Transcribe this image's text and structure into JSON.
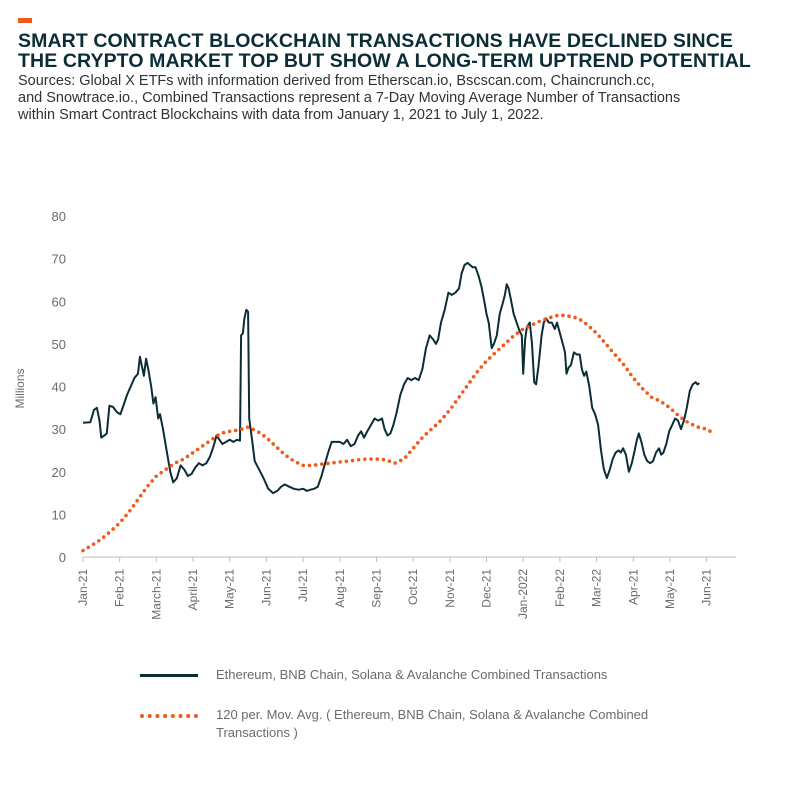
{
  "header": {
    "accent_color": "#f05a1a",
    "title_lines": [
      "SMART CONTRACT BLOCKCHAIN TRANSACTIONS HAVE DECLINED SINCE",
      "THE CRYPTO MARKET TOP BUT SHOW A LONG-TERM UPTREND POTENTIAL"
    ],
    "source_lines": [
      "Sources: Global X ETFs with information derived from Etherscan.io, Bscscan.com, Chaincrunch.cc,",
      "and Snowtrace.io., Combined Transactions represent a 7-Day Moving Average Number of Transactions",
      "within Smart Contract Blockchains with data from January 1, 2021 to July 1, 2022."
    ]
  },
  "chart_data": {
    "type": "line",
    "ylabel": "Millions",
    "ylim": [
      0,
      80
    ],
    "yticks": [
      0,
      10,
      20,
      30,
      40,
      50,
      60,
      70,
      80
    ],
    "xlim": [
      0,
      17.8
    ],
    "xtick_labels": [
      "Jan-21",
      "Feb-21",
      "March-21",
      "April-21",
      "May-21",
      "Jun-21",
      "Jul-21",
      "Aug-21",
      "Sep-21",
      "Oct-21",
      "Nov-21",
      "Dec-21",
      "Jan-2022",
      "Feb-22",
      "Mar-22",
      "Apr-21",
      "May-21",
      "Jun-21"
    ],
    "grid": false,
    "legend_position": "bottom",
    "series": [
      {
        "name": "Ethereum, BNB Chain, Solana & Avalanche Combined Transactions",
        "color": "#0b2d36",
        "style": "solid",
        "points": [
          [
            0.0,
            31.5
          ],
          [
            0.2,
            31.6
          ],
          [
            0.3,
            34.5
          ],
          [
            0.38,
            35.0
          ],
          [
            0.45,
            32.0
          ],
          [
            0.5,
            28.0
          ],
          [
            0.58,
            28.5
          ],
          [
            0.65,
            29.0
          ],
          [
            0.72,
            35.5
          ],
          [
            0.82,
            35.2
          ],
          [
            0.92,
            34.0
          ],
          [
            1.02,
            33.5
          ],
          [
            1.1,
            35.5
          ],
          [
            1.2,
            38.0
          ],
          [
            1.3,
            40.0
          ],
          [
            1.4,
            42.0
          ],
          [
            1.5,
            43.0
          ],
          [
            1.55,
            47.0
          ],
          [
            1.6,
            45.0
          ],
          [
            1.66,
            42.5
          ],
          [
            1.72,
            46.5
          ],
          [
            1.78,
            44.0
          ],
          [
            1.86,
            40.0
          ],
          [
            1.92,
            36.0
          ],
          [
            1.98,
            37.5
          ],
          [
            2.05,
            32.5
          ],
          [
            2.1,
            33.5
          ],
          [
            2.18,
            30.0
          ],
          [
            2.28,
            25.0
          ],
          [
            2.38,
            20.0
          ],
          [
            2.46,
            17.5
          ],
          [
            2.56,
            18.5
          ],
          [
            2.66,
            21.5
          ],
          [
            2.76,
            20.5
          ],
          [
            2.86,
            19.0
          ],
          [
            2.96,
            19.5
          ],
          [
            3.06,
            21.0
          ],
          [
            3.16,
            22.0
          ],
          [
            3.26,
            21.5
          ],
          [
            3.36,
            22.0
          ],
          [
            3.46,
            23.5
          ],
          [
            3.56,
            26.0
          ],
          [
            3.64,
            28.5
          ],
          [
            3.72,
            27.5
          ],
          [
            3.8,
            26.5
          ],
          [
            3.9,
            27.0
          ],
          [
            4.0,
            27.5
          ],
          [
            4.1,
            27.0
          ],
          [
            4.2,
            27.5
          ],
          [
            4.28,
            27.3
          ],
          [
            4.31,
            52.0
          ],
          [
            4.36,
            52.5
          ],
          [
            4.4,
            56.0
          ],
          [
            4.45,
            58.0
          ],
          [
            4.5,
            57.5
          ],
          [
            4.53,
            32.5
          ],
          [
            4.6,
            28.0
          ],
          [
            4.68,
            22.5
          ],
          [
            4.8,
            20.5
          ],
          [
            4.92,
            18.5
          ],
          [
            5.05,
            16.0
          ],
          [
            5.18,
            15.0
          ],
          [
            5.3,
            15.5
          ],
          [
            5.4,
            16.5
          ],
          [
            5.5,
            17.0
          ],
          [
            5.62,
            16.5
          ],
          [
            5.75,
            16.0
          ],
          [
            5.88,
            15.8
          ],
          [
            6.0,
            16.0
          ],
          [
            6.1,
            15.5
          ],
          [
            6.2,
            15.8
          ],
          [
            6.3,
            16.0
          ],
          [
            6.4,
            16.5
          ],
          [
            6.5,
            19.0
          ],
          [
            6.6,
            22.0
          ],
          [
            6.7,
            25.0
          ],
          [
            6.78,
            27.0
          ],
          [
            6.9,
            27.0
          ],
          [
            7.0,
            27.0
          ],
          [
            7.1,
            26.5
          ],
          [
            7.2,
            27.5
          ],
          [
            7.3,
            26.0
          ],
          [
            7.4,
            26.5
          ],
          [
            7.5,
            28.5
          ],
          [
            7.58,
            29.5
          ],
          [
            7.66,
            28.0
          ],
          [
            7.75,
            29.5
          ],
          [
            7.85,
            31.0
          ],
          [
            7.95,
            32.5
          ],
          [
            8.05,
            32.0
          ],
          [
            8.15,
            32.5
          ],
          [
            8.22,
            30.0
          ],
          [
            8.3,
            28.5
          ],
          [
            8.38,
            29.0
          ],
          [
            8.46,
            31.0
          ],
          [
            8.55,
            34.0
          ],
          [
            8.65,
            38.0
          ],
          [
            8.75,
            40.5
          ],
          [
            8.85,
            42.0
          ],
          [
            8.95,
            41.5
          ],
          [
            9.05,
            42.0
          ],
          [
            9.15,
            41.5
          ],
          [
            9.25,
            44.0
          ],
          [
            9.35,
            49.0
          ],
          [
            9.45,
            52.0
          ],
          [
            9.55,
            51.0
          ],
          [
            9.62,
            50.0
          ],
          [
            9.68,
            51.0
          ],
          [
            9.76,
            55.0
          ],
          [
            9.86,
            58.0
          ],
          [
            9.96,
            62.0
          ],
          [
            10.05,
            61.5
          ],
          [
            10.15,
            62.0
          ],
          [
            10.25,
            63.0
          ],
          [
            10.32,
            66.5
          ],
          [
            10.4,
            68.5
          ],
          [
            10.48,
            69.0
          ],
          [
            10.55,
            68.5
          ],
          [
            10.62,
            68.0
          ],
          [
            10.7,
            68.0
          ],
          [
            10.78,
            66.0
          ],
          [
            10.86,
            63.5
          ],
          [
            10.94,
            60.0
          ],
          [
            11.0,
            57.0
          ],
          [
            11.06,
            55.0
          ],
          [
            11.1,
            52.0
          ],
          [
            11.14,
            49.0
          ],
          [
            11.2,
            50.0
          ],
          [
            11.28,
            52.0
          ],
          [
            11.36,
            57.0
          ],
          [
            11.44,
            59.5
          ],
          [
            11.5,
            61.5
          ],
          [
            11.55,
            64.0
          ],
          [
            11.6,
            63.0
          ],
          [
            11.66,
            60.5
          ],
          [
            11.74,
            57.0
          ],
          [
            11.82,
            55.0
          ],
          [
            11.9,
            53.0
          ],
          [
            11.96,
            52.0
          ],
          [
            12.0,
            43.0
          ],
          [
            12.05,
            51.0
          ],
          [
            12.1,
            54.0
          ],
          [
            12.18,
            55.0
          ],
          [
            12.24,
            50.0
          ],
          [
            12.3,
            41.0
          ],
          [
            12.35,
            40.5
          ],
          [
            12.42,
            45.0
          ],
          [
            12.5,
            52.0
          ],
          [
            12.56,
            55.0
          ],
          [
            12.62,
            56.0
          ],
          [
            12.7,
            55.0
          ],
          [
            12.78,
            55.0
          ],
          [
            12.86,
            53.5
          ],
          [
            12.92,
            55.0
          ],
          [
            13.0,
            52.5
          ],
          [
            13.08,
            50.0
          ],
          [
            13.14,
            48.0
          ],
          [
            13.18,
            43.0
          ],
          [
            13.24,
            44.5
          ],
          [
            13.3,
            45.0
          ],
          [
            13.38,
            48.0
          ],
          [
            13.46,
            47.5
          ],
          [
            13.54,
            47.5
          ],
          [
            13.6,
            44.0
          ],
          [
            13.66,
            42.5
          ],
          [
            13.72,
            43.5
          ],
          [
            13.8,
            40.0
          ],
          [
            13.88,
            35.0
          ],
          [
            13.96,
            33.5
          ],
          [
            14.04,
            31.0
          ],
          [
            14.12,
            25.0
          ],
          [
            14.2,
            20.5
          ],
          [
            14.28,
            18.5
          ],
          [
            14.36,
            20.5
          ],
          [
            14.44,
            23.0
          ],
          [
            14.52,
            24.5
          ],
          [
            14.6,
            25.0
          ],
          [
            14.66,
            24.5
          ],
          [
            14.72,
            25.5
          ],
          [
            14.8,
            24.0
          ],
          [
            14.88,
            20.0
          ],
          [
            14.96,
            22.0
          ],
          [
            15.04,
            25.0
          ],
          [
            15.1,
            27.5
          ],
          [
            15.15,
            29.0
          ],
          [
            15.22,
            27.0
          ],
          [
            15.3,
            24.0
          ],
          [
            15.38,
            22.5
          ],
          [
            15.46,
            22.0
          ],
          [
            15.54,
            22.5
          ],
          [
            15.62,
            24.5
          ],
          [
            15.7,
            25.5
          ],
          [
            15.76,
            24.0
          ],
          [
            15.82,
            24.5
          ],
          [
            15.9,
            26.5
          ],
          [
            15.98,
            29.5
          ],
          [
            16.06,
            31.0
          ],
          [
            16.14,
            32.5
          ],
          [
            16.22,
            32.0
          ],
          [
            16.3,
            30.0
          ],
          [
            16.38,
            32.0
          ],
          [
            16.46,
            35.0
          ],
          [
            16.54,
            39.0
          ],
          [
            16.62,
            40.5
          ],
          [
            16.7,
            41.0
          ],
          [
            16.75,
            40.5
          ],
          [
            16.8,
            40.8
          ]
        ]
      },
      {
        "name": "120 per. Mov. Avg. ( Ethereum, BNB Chain, Solana & Avalanche Combined Transactions )",
        "color": "#f05a1a",
        "style": "dotted",
        "points": [
          [
            0.0,
            1.5
          ],
          [
            0.25,
            2.8
          ],
          [
            0.5,
            4.2
          ],
          [
            0.75,
            6.0
          ],
          [
            1.0,
            8.0
          ],
          [
            1.25,
            10.5
          ],
          [
            1.5,
            13.5
          ],
          [
            1.75,
            16.5
          ],
          [
            2.0,
            19.0
          ],
          [
            2.25,
            20.5
          ],
          [
            2.5,
            22.0
          ],
          [
            2.75,
            23.0
          ],
          [
            3.0,
            24.5
          ],
          [
            3.25,
            26.0
          ],
          [
            3.5,
            27.5
          ],
          [
            3.75,
            29.0
          ],
          [
            4.0,
            29.5
          ],
          [
            4.25,
            29.8
          ],
          [
            4.5,
            30.5
          ],
          [
            4.75,
            29.5
          ],
          [
            5.0,
            28.0
          ],
          [
            5.25,
            26.0
          ],
          [
            5.5,
            24.0
          ],
          [
            5.75,
            22.5
          ],
          [
            6.0,
            21.5
          ],
          [
            6.25,
            21.5
          ],
          [
            6.5,
            21.8
          ],
          [
            6.75,
            22.0
          ],
          [
            7.0,
            22.3
          ],
          [
            7.25,
            22.5
          ],
          [
            7.5,
            22.8
          ],
          [
            7.75,
            23.0
          ],
          [
            8.0,
            23.0
          ],
          [
            8.25,
            22.8
          ],
          [
            8.5,
            22.0
          ],
          [
            8.75,
            23.0
          ],
          [
            9.0,
            25.5
          ],
          [
            9.25,
            28.0
          ],
          [
            9.5,
            30.0
          ],
          [
            9.75,
            32.0
          ],
          [
            10.0,
            34.5
          ],
          [
            10.25,
            37.5
          ],
          [
            10.5,
            40.5
          ],
          [
            10.75,
            43.5
          ],
          [
            11.0,
            46.0
          ],
          [
            11.25,
            48.0
          ],
          [
            11.5,
            50.0
          ],
          [
            11.75,
            52.0
          ],
          [
            12.0,
            53.5
          ],
          [
            12.25,
            54.5
          ],
          [
            12.5,
            55.5
          ],
          [
            12.75,
            56.2
          ],
          [
            13.0,
            56.8
          ],
          [
            13.25,
            56.5
          ],
          [
            13.5,
            56.0
          ],
          [
            13.75,
            54.5
          ],
          [
            14.0,
            52.5
          ],
          [
            14.25,
            50.0
          ],
          [
            14.5,
            47.5
          ],
          [
            14.75,
            45.0
          ],
          [
            15.0,
            42.0
          ],
          [
            15.25,
            39.5
          ],
          [
            15.5,
            37.5
          ],
          [
            15.75,
            36.5
          ],
          [
            16.0,
            35.0
          ],
          [
            16.25,
            33.0
          ],
          [
            16.5,
            31.5
          ],
          [
            16.75,
            30.5
          ],
          [
            17.0,
            30.0
          ],
          [
            17.1,
            29.5
          ]
        ]
      }
    ]
  }
}
